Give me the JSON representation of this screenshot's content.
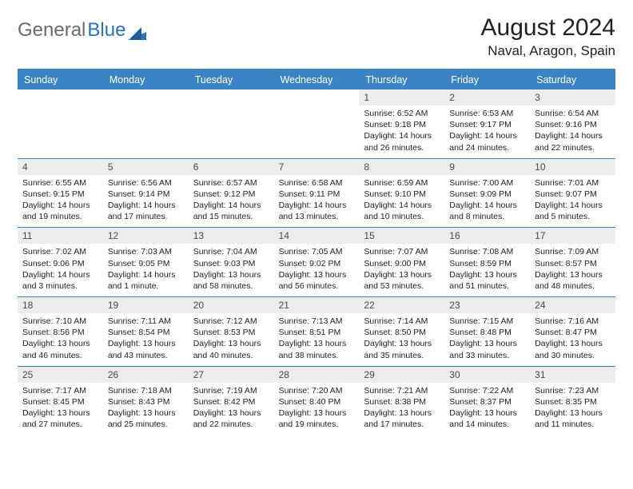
{
  "logo": {
    "part1": "General",
    "part2": "Blue"
  },
  "title": "August 2024",
  "location": "Naval, Aragon, Spain",
  "colors": {
    "header_bar": "#3b84c4",
    "daynum_bg": "#ececec",
    "text": "#222222",
    "logo_gray": "#6a6a6a",
    "logo_blue": "#2a72b5"
  },
  "dayNames": [
    "Sunday",
    "Monday",
    "Tuesday",
    "Wednesday",
    "Thursday",
    "Friday",
    "Saturday"
  ],
  "weeks": [
    {
      "nums": [
        "",
        "",
        "",
        "",
        "1",
        "2",
        "3"
      ],
      "cells": [
        "",
        "",
        "",
        "",
        "Sunrise: 6:52 AM\nSunset: 9:18 PM\nDaylight: 14 hours and 26 minutes.",
        "Sunrise: 6:53 AM\nSunset: 9:17 PM\nDaylight: 14 hours and 24 minutes.",
        "Sunrise: 6:54 AM\nSunset: 9:16 PM\nDaylight: 14 hours and 22 minutes."
      ]
    },
    {
      "nums": [
        "4",
        "5",
        "6",
        "7",
        "8",
        "9",
        "10"
      ],
      "cells": [
        "Sunrise: 6:55 AM\nSunset: 9:15 PM\nDaylight: 14 hours and 19 minutes.",
        "Sunrise: 6:56 AM\nSunset: 9:14 PM\nDaylight: 14 hours and 17 minutes.",
        "Sunrise: 6:57 AM\nSunset: 9:12 PM\nDaylight: 14 hours and 15 minutes.",
        "Sunrise: 6:58 AM\nSunset: 9:11 PM\nDaylight: 14 hours and 13 minutes.",
        "Sunrise: 6:59 AM\nSunset: 9:10 PM\nDaylight: 14 hours and 10 minutes.",
        "Sunrise: 7:00 AM\nSunset: 9:09 PM\nDaylight: 14 hours and 8 minutes.",
        "Sunrise: 7:01 AM\nSunset: 9:07 PM\nDaylight: 14 hours and 5 minutes."
      ]
    },
    {
      "nums": [
        "11",
        "12",
        "13",
        "14",
        "15",
        "16",
        "17"
      ],
      "cells": [
        "Sunrise: 7:02 AM\nSunset: 9:06 PM\nDaylight: 14 hours and 3 minutes.",
        "Sunrise: 7:03 AM\nSunset: 9:05 PM\nDaylight: 14 hours and 1 minute.",
        "Sunrise: 7:04 AM\nSunset: 9:03 PM\nDaylight: 13 hours and 58 minutes.",
        "Sunrise: 7:05 AM\nSunset: 9:02 PM\nDaylight: 13 hours and 56 minutes.",
        "Sunrise: 7:07 AM\nSunset: 9:00 PM\nDaylight: 13 hours and 53 minutes.",
        "Sunrise: 7:08 AM\nSunset: 8:59 PM\nDaylight: 13 hours and 51 minutes.",
        "Sunrise: 7:09 AM\nSunset: 8:57 PM\nDaylight: 13 hours and 48 minutes."
      ]
    },
    {
      "nums": [
        "18",
        "19",
        "20",
        "21",
        "22",
        "23",
        "24"
      ],
      "cells": [
        "Sunrise: 7:10 AM\nSunset: 8:56 PM\nDaylight: 13 hours and 46 minutes.",
        "Sunrise: 7:11 AM\nSunset: 8:54 PM\nDaylight: 13 hours and 43 minutes.",
        "Sunrise: 7:12 AM\nSunset: 8:53 PM\nDaylight: 13 hours and 40 minutes.",
        "Sunrise: 7:13 AM\nSunset: 8:51 PM\nDaylight: 13 hours and 38 minutes.",
        "Sunrise: 7:14 AM\nSunset: 8:50 PM\nDaylight: 13 hours and 35 minutes.",
        "Sunrise: 7:15 AM\nSunset: 8:48 PM\nDaylight: 13 hours and 33 minutes.",
        "Sunrise: 7:16 AM\nSunset: 8:47 PM\nDaylight: 13 hours and 30 minutes."
      ]
    },
    {
      "nums": [
        "25",
        "26",
        "27",
        "28",
        "29",
        "30",
        "31"
      ],
      "cells": [
        "Sunrise: 7:17 AM\nSunset: 8:45 PM\nDaylight: 13 hours and 27 minutes.",
        "Sunrise: 7:18 AM\nSunset: 8:43 PM\nDaylight: 13 hours and 25 minutes.",
        "Sunrise: 7:19 AM\nSunset: 8:42 PM\nDaylight: 13 hours and 22 minutes.",
        "Sunrise: 7:20 AM\nSunset: 8:40 PM\nDaylight: 13 hours and 19 minutes.",
        "Sunrise: 7:21 AM\nSunset: 8:38 PM\nDaylight: 13 hours and 17 minutes.",
        "Sunrise: 7:22 AM\nSunset: 8:37 PM\nDaylight: 13 hours and 14 minutes.",
        "Sunrise: 7:23 AM\nSunset: 8:35 PM\nDaylight: 13 hours and 11 minutes."
      ]
    }
  ]
}
